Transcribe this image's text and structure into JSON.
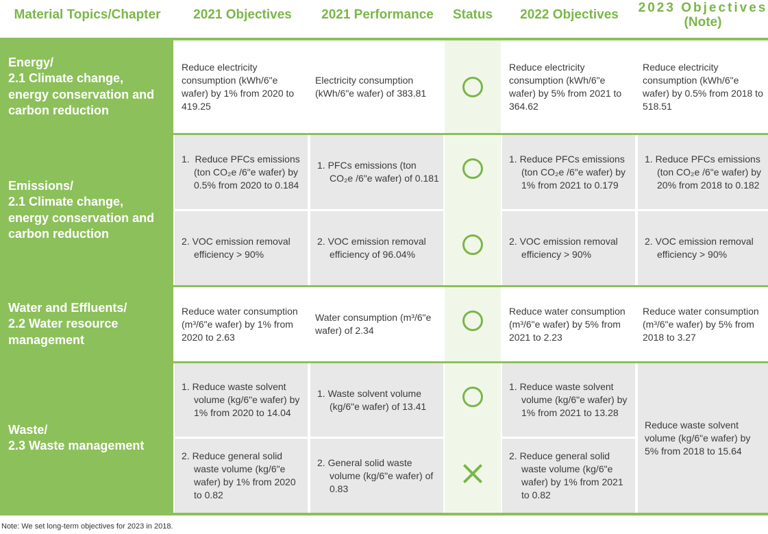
{
  "headers": {
    "topic": "Material Topics/Chapter",
    "obj2021": "2021 Objectives",
    "perf2021": "2021 Performance",
    "status": "Status",
    "obj2022": "2022 Objectives",
    "obj2023_line1": "2023 Objectives",
    "obj2023_line2": "(Note)"
  },
  "topics": {
    "energy": "Energy/\n2.1 Climate change,\nenergy conservation and\ncarbon reduction",
    "emissions": "Emissions/\n2.1 Climate change,\nenergy conservation and\ncarbon reduction",
    "water": "Water and Effluents/\n2.2 Water resource\nmanagement",
    "waste": "Waste/\n2.3 Waste management"
  },
  "energy": {
    "obj2021": "Reduce electricity consumption (kWh/6\"e wafer) by 1% from 2020 to 419.25",
    "perf2021": "Electricity consumption (kWh/6\"e wafer) of 383.81",
    "status": "achieved",
    "obj2022": "Reduce electricity consumption (kWh/6\"e wafer) by 5% from 2021 to 364.62",
    "obj2023": "Reduce electricity consumption (kWh/6\"e wafer) by 0.5% from 2018 to 518.51"
  },
  "pfc": {
    "obj2021": "1.  Reduce PFCs emissions (ton CO₂e /6\"e wafer) by 0.5% from 2020 to 0.184",
    "perf2021": "1. PFCs emissions (ton CO₂e /6\"e wafer) of 0.181",
    "status": "achieved",
    "obj2022": "1. Reduce PFCs emissions (ton CO₂e /6\"e wafer) by 1% from 2021 to 0.179",
    "obj2023": "1. Reduce PFCs emissions (ton CO₂e /6\"e wafer) by 20% from 2018 to 0.182"
  },
  "voc": {
    "obj2021": "2. VOC emission removal efficiency > 90%",
    "perf2021": "2. VOC emission removal efficiency of 96.04%",
    "status": "achieved",
    "obj2022": "2. VOC emission removal efficiency > 90%",
    "obj2023": "2. VOC emission removal efficiency > 90%"
  },
  "water": {
    "obj2021": "Reduce water consumption (m³/6\"e wafer) by 1% from 2020 to 2.63",
    "perf2021": "Water consumption (m³/6\"e wafer) of 2.34",
    "status": "achieved",
    "obj2022": "Reduce water consumption (m³/6\"e wafer) by 5% from 2021 to 2.23",
    "obj2023": "Reduce water consumption (m³/6\"e wafer) by 5% from 2018 to 3.27"
  },
  "solvent": {
    "obj2021": "1. Reduce waste solvent volume (kg/6\"e wafer) by 1% from 2020 to 14.04",
    "perf2021": "1. Waste solvent volume (kg/6\"e wafer) of 13.41",
    "status": "achieved",
    "obj2022": "1. Reduce waste solvent volume (kg/6\"e wafer) by 1% from 2021 to 13.28"
  },
  "solid": {
    "obj2021": "2. Reduce general solid waste volume (kg/6\"e wafer) by 1% from 2020 to 0.82",
    "perf2021": "2. General solid waste volume (kg/6\"e wafer) of 0.83",
    "status": "not achieved",
    "obj2022": "2. Reduce general solid waste volume (kg/6\"e wafer) by 1% from 2021 to 0.82"
  },
  "waste_obj2023": "Reduce waste solvent volume (kg/6\"e wafer) by 5% from 2018 to 15.64",
  "note": "Note: We set long-term objectives for 2023 in 2018.",
  "colors": {
    "accent": "#8cc05a",
    "header_text": "#7ab648",
    "cell_gray": "#e8e8e8",
    "status_bg": "#f0f7e9"
  }
}
